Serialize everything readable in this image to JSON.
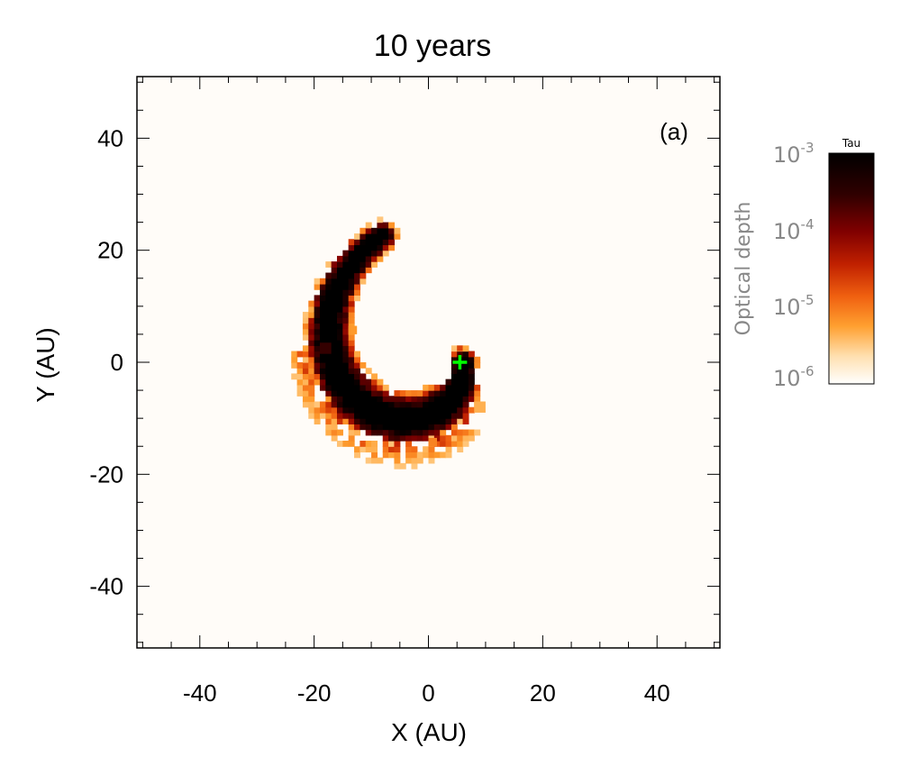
{
  "chart_data": {
    "type": "heatmap",
    "title": "10 years",
    "panel_label": "(a)",
    "xlabel": "X (AU)",
    "ylabel": "Y (AU)",
    "xlim": [
      -51,
      51
    ],
    "ylim": [
      -51,
      51
    ],
    "x_ticks": [
      -40,
      -20,
      0,
      20,
      40
    ],
    "y_ticks": [
      -40,
      -20,
      0,
      20,
      40
    ],
    "x_tick_labels": [
      "-40",
      "-20",
      "0",
      "20",
      "40"
    ],
    "y_tick_labels": [
      "-40",
      "-20",
      "0",
      "20",
      "40"
    ],
    "marker": {
      "x": 5.5,
      "y": 0,
      "symbol": "+",
      "color": "#00ff00"
    },
    "colorbar": {
      "title": "Tau",
      "label": "Optical depth",
      "scale": "log",
      "range": [
        1e-06,
        0.001
      ],
      "tick_base": "10",
      "tick_exponents": [
        "-3",
        "-4",
        "-5",
        "-6"
      ],
      "colors": [
        "#ffffff",
        "#ffe0b0",
        "#ffa030",
        "#f06010",
        "#c02000",
        "#800000",
        "#300000",
        "#000000"
      ]
    },
    "structure": {
      "arc": {
        "center_x": 0,
        "center_y": 0,
        "r_start": 6,
        "r_end": 24,
        "angle_start_deg": 0,
        "angle_end_deg": 250,
        "width_au": 3.5
      },
      "background_color": "#fffcf8",
      "inner_void_radius_au": 4.5
    }
  }
}
